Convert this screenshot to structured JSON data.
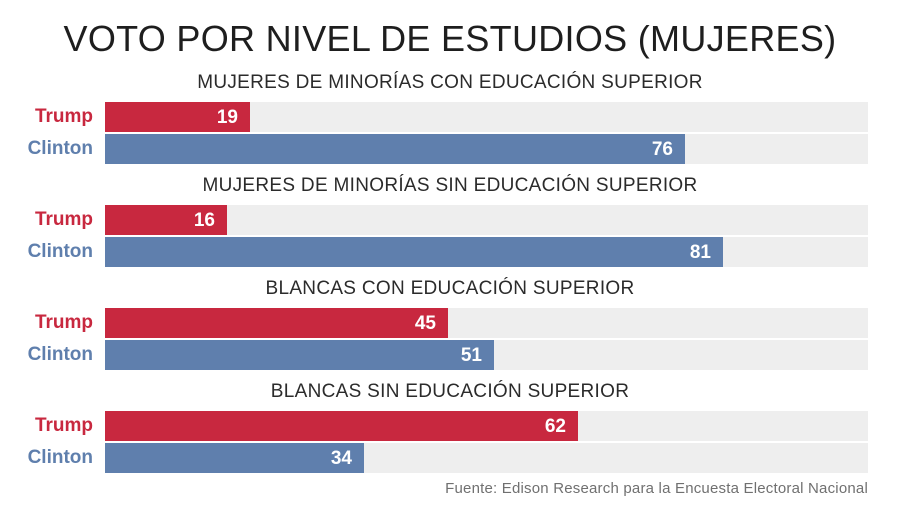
{
  "chart_data": {
    "type": "bar",
    "orientation": "horizontal",
    "title": "VOTO POR NIVEL DE ESTUDIOS (MUJERES)",
    "xlim": [
      0,
      100
    ],
    "grid": false,
    "series_colors": {
      "Trump": "#c8283f",
      "Clinton": "#5f7fad"
    },
    "groups": [
      {
        "title": "MUJERES DE MINORÍAS CON EDUCACIÓN SUPERIOR",
        "bars": [
          {
            "label": "Trump",
            "value": 19
          },
          {
            "label": "Clinton",
            "value": 76
          }
        ]
      },
      {
        "title": "MUJERES DE MINORÍAS SIN EDUCACIÓN SUPERIOR",
        "bars": [
          {
            "label": "Trump",
            "value": 16
          },
          {
            "label": "Clinton",
            "value": 81
          }
        ]
      },
      {
        "title": "BLANCAS CON EDUCACIÓN SUPERIOR",
        "bars": [
          {
            "label": "Trump",
            "value": 45
          },
          {
            "label": "Clinton",
            "value": 51
          }
        ]
      },
      {
        "title": "BLANCAS SIN EDUCACIÓN SUPERIOR",
        "bars": [
          {
            "label": "Trump",
            "value": 62
          },
          {
            "label": "Clinton",
            "value": 34
          }
        ]
      }
    ],
    "source": "Fuente: Edison Research para la Encuesta Electoral Nacional"
  }
}
